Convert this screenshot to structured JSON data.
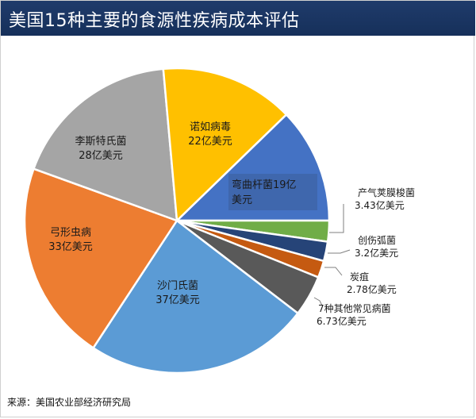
{
  "header": {
    "title": "美国15种主要的食源性疾病成本评估"
  },
  "footer": {
    "source": "来源：美国农业部经济研究局"
  },
  "chart_data": {
    "type": "pie",
    "title": "美国15种主要的食源性疾病成本评估",
    "unit": "亿美元",
    "slices": [
      {
        "name": "弯曲杆菌",
        "value": 19,
        "label": "19亿",
        "unit_label": "美元",
        "color": "#4472c4"
      },
      {
        "name": "产气荚膜梭菌",
        "value": 3.43,
        "label": "3.43亿美元",
        "color": "#70ad47"
      },
      {
        "name": "创伤弧菌",
        "value": 3.2,
        "label": "3.2亿美元",
        "color": "#264478"
      },
      {
        "name": "炭疽",
        "value": 2.78,
        "label": "2.78亿美元",
        "color": "#c55a11"
      },
      {
        "name": "7种其他常见病菌",
        "value": 6.73,
        "label": "6.73亿美元",
        "color": "#595959"
      },
      {
        "name": "沙门氏菌",
        "value": 37,
        "label": "37亿美元",
        "color": "#5b9bd5"
      },
      {
        "name": "弓形虫病",
        "value": 33,
        "label": "33亿美元",
        "color": "#ed7d31"
      },
      {
        "name": "李斯特氏菌",
        "value": 28,
        "label": "28亿美元",
        "color": "#a5a5a5"
      },
      {
        "name": "诺如病毒",
        "value": 22,
        "label": "22亿美元",
        "color": "#ffc000"
      }
    ]
  }
}
